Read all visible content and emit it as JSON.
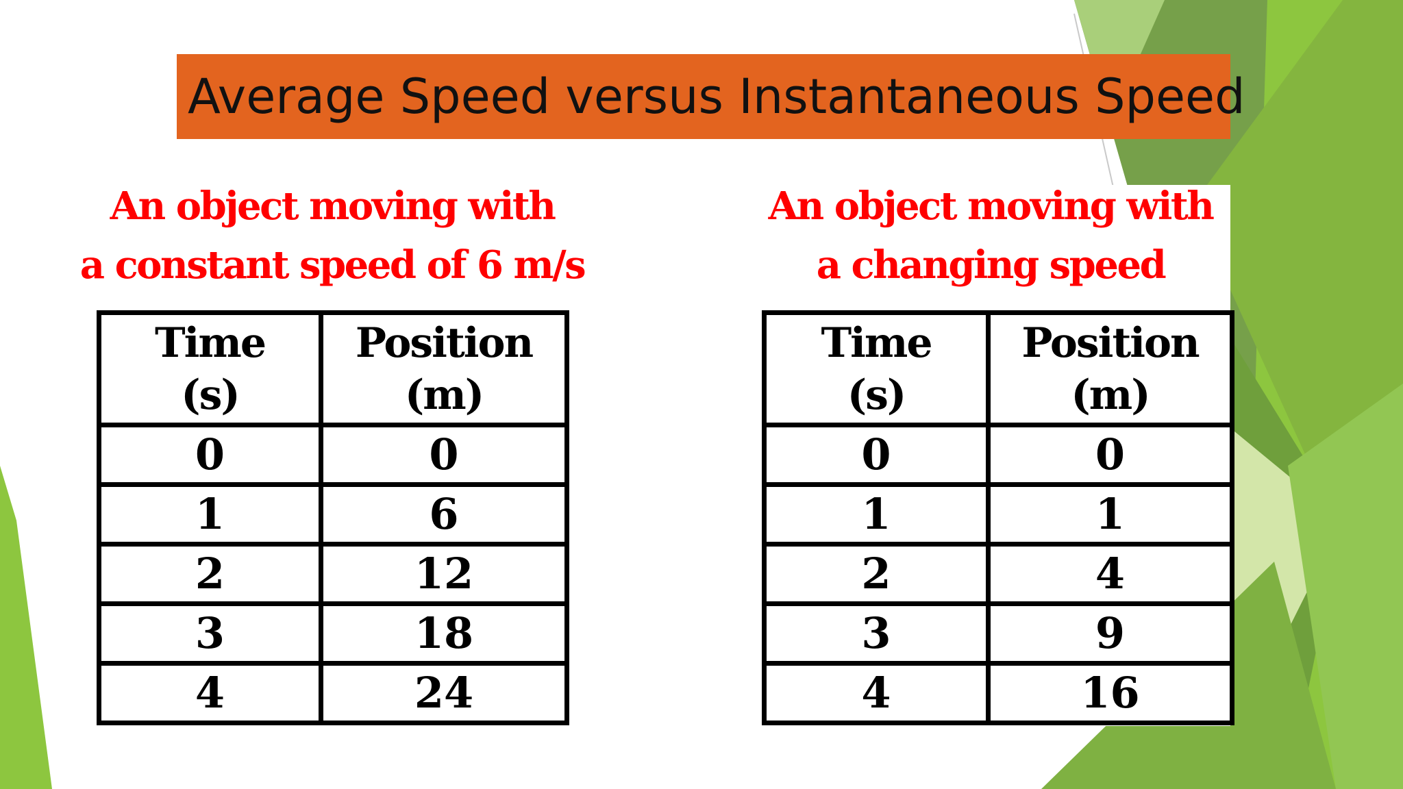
{
  "slide": {
    "title": "Average Speed versus Instantaneous Speed",
    "colors": {
      "title_bar": "#e3641f",
      "caption_text": "#ff0000",
      "accent_green_dark": "#6b9b3a",
      "accent_green_light": "#8dc63f"
    }
  },
  "left_panel": {
    "caption_line1": "An object moving with",
    "caption_line2": "a constant speed of 6 m/s",
    "header_time_1": "Time",
    "header_time_2": "(s)",
    "header_position_1": "Position",
    "header_position_2": "(m)",
    "rows": [
      {
        "time": "0",
        "position": "0"
      },
      {
        "time": "1",
        "position": "6"
      },
      {
        "time": "2",
        "position": "12"
      },
      {
        "time": "3",
        "position": "18"
      },
      {
        "time": "4",
        "position": "24"
      }
    ]
  },
  "right_panel": {
    "caption_line1": "An object moving with",
    "caption_line2": "a changing speed",
    "header_time_1": "Time",
    "header_time_2": "(s)",
    "header_position_1": "Position",
    "header_position_2": "(m)",
    "rows": [
      {
        "time": "0",
        "position": "0"
      },
      {
        "time": "1",
        "position": "1"
      },
      {
        "time": "2",
        "position": "4"
      },
      {
        "time": "3",
        "position": "9"
      },
      {
        "time": "4",
        "position": "16"
      }
    ]
  }
}
